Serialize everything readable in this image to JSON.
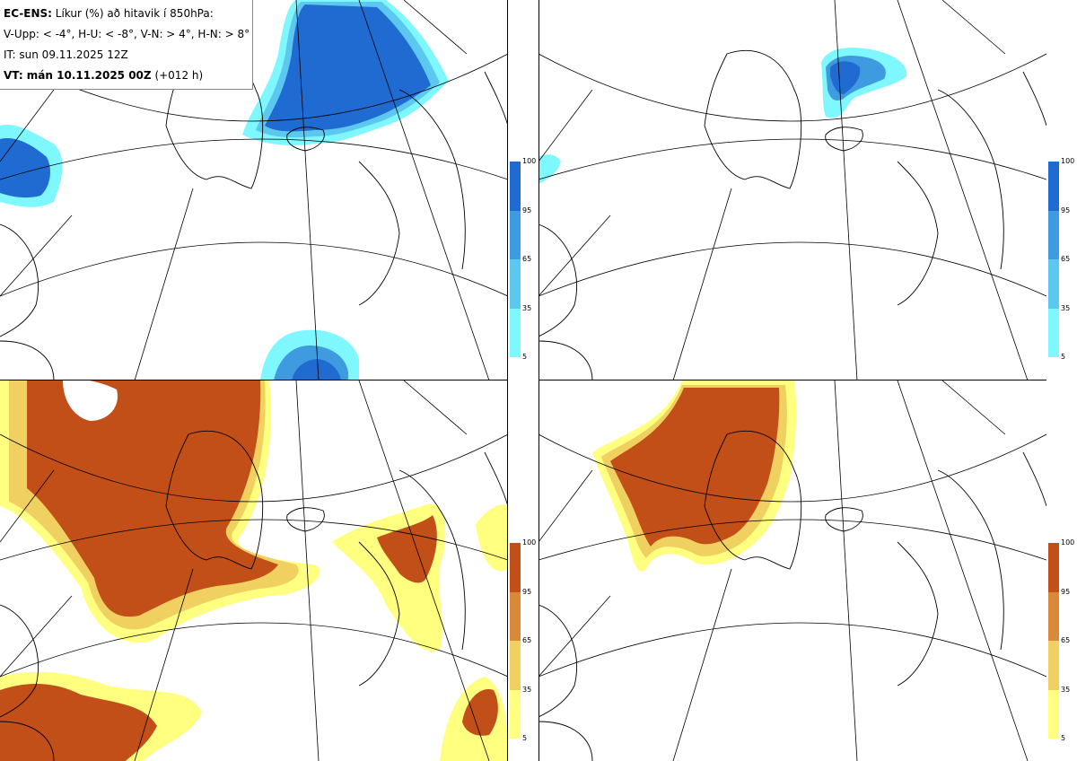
{
  "legend": {
    "model": "EC-ENS:",
    "title": "Líkur (%) að hitavik í 850hPa:",
    "thresholds": "V-Upp: < -4°, H-U: < -8°, V-N: > 4°, H-N: > 8°",
    "init_time": "IT: sun 09.11.2025 12Z",
    "valid_time": "VT: mán 10.11.2025 00Z",
    "lead": "(+012 h)"
  },
  "colorbar_ticks": [
    "100",
    "95",
    "65",
    "35",
    "5"
  ],
  "colors": {
    "cold": [
      "#7ff7ff",
      "#5cc8f0",
      "#3f9be0",
      "#1f6bd1"
    ],
    "warm": [
      "#ffff80",
      "#f0d060",
      "#d88a3a",
      "#c24f17"
    ],
    "coast": "#000000",
    "grid": "#000000"
  },
  "panels": [
    {
      "name": "V-Upp",
      "variable": "probability temperature anomaly < -4°",
      "palette": "cold"
    },
    {
      "name": "H-U",
      "variable": "probability temperature anomaly < -8°",
      "palette": "cold"
    },
    {
      "name": "V-N",
      "variable": "probability temperature anomaly > 4°",
      "palette": "warm"
    },
    {
      "name": "H-N",
      "variable": "probability temperature anomaly > 8°",
      "palette": "warm"
    }
  ]
}
